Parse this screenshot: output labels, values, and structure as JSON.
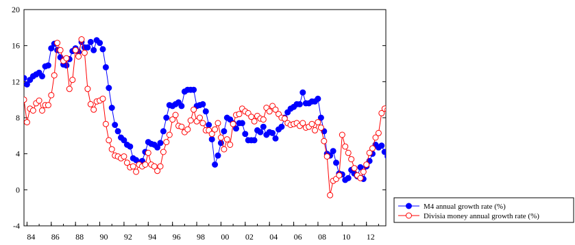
{
  "chart_data": {
    "type": "line",
    "title": "",
    "xlabel": "",
    "ylabel": "",
    "xlim": [
      1983.75,
      2013.6
    ],
    "ylim": [
      -4,
      20
    ],
    "y_ticks": [
      "-4",
      "0",
      "4",
      "8",
      "12",
      "16",
      "20"
    ],
    "y_tick_values": [
      -4,
      0,
      4,
      8,
      12,
      16,
      20
    ],
    "x_ticks": [
      "84",
      "86",
      "88",
      "90",
      "92",
      "94",
      "96",
      "98",
      "00",
      "02",
      "04",
      "06",
      "08",
      "10",
      "12"
    ],
    "x_tick_values": [
      1984,
      1986,
      1988,
      1990,
      1992,
      1994,
      1996,
      1998,
      2000,
      2002,
      2004,
      2006,
      2008,
      2010,
      2012
    ],
    "grid": false,
    "legend_position": "bottom-right, outside plot",
    "series": [
      {
        "name": "M4 annual growth rate (%)",
        "color": "#0000ff",
        "marker": "filled-circle",
        "points": [
          [
            1983.75,
            12.4
          ],
          [
            1984.0,
            11.7
          ],
          [
            1984.25,
            12.2
          ],
          [
            1984.5,
            12.6
          ],
          [
            1984.75,
            12.8
          ],
          [
            1985.0,
            13.0
          ],
          [
            1985.25,
            12.6
          ],
          [
            1985.5,
            13.7
          ],
          [
            1985.75,
            13.8
          ],
          [
            1986.0,
            15.7
          ],
          [
            1986.25,
            16.2
          ],
          [
            1986.5,
            15.5
          ],
          [
            1986.75,
            14.7
          ],
          [
            1987.0,
            13.9
          ],
          [
            1987.25,
            13.8
          ],
          [
            1987.5,
            14.5
          ],
          [
            1987.75,
            15.4
          ],
          [
            1988.0,
            15.7
          ],
          [
            1988.25,
            15.3
          ],
          [
            1988.5,
            16.4
          ],
          [
            1988.75,
            15.8
          ],
          [
            1989.0,
            15.8
          ],
          [
            1989.25,
            16.4
          ],
          [
            1989.5,
            15.5
          ],
          [
            1989.75,
            16.6
          ],
          [
            1990.0,
            16.3
          ],
          [
            1990.25,
            15.6
          ],
          [
            1990.5,
            13.6
          ],
          [
            1990.75,
            11.3
          ],
          [
            1991.0,
            9.1
          ],
          [
            1991.25,
            7.2
          ],
          [
            1991.5,
            6.5
          ],
          [
            1991.75,
            5.8
          ],
          [
            1992.0,
            5.5
          ],
          [
            1992.25,
            5.0
          ],
          [
            1992.5,
            4.8
          ],
          [
            1992.75,
            3.5
          ],
          [
            1993.0,
            3.3
          ],
          [
            1993.25,
            3.0
          ],
          [
            1993.5,
            3.2
          ],
          [
            1993.75,
            4.2
          ],
          [
            1994.0,
            5.3
          ],
          [
            1994.25,
            5.1
          ],
          [
            1994.5,
            5.0
          ],
          [
            1994.75,
            4.7
          ],
          [
            1995.0,
            5.2
          ],
          [
            1995.25,
            6.5
          ],
          [
            1995.5,
            8.0
          ],
          [
            1995.75,
            9.4
          ],
          [
            1996.0,
            9.3
          ],
          [
            1996.25,
            9.5
          ],
          [
            1996.5,
            9.7
          ],
          [
            1996.75,
            9.3
          ],
          [
            1997.0,
            10.9
          ],
          [
            1997.25,
            11.1
          ],
          [
            1997.5,
            11.1
          ],
          [
            1997.75,
            11.1
          ],
          [
            1998.0,
            9.3
          ],
          [
            1998.25,
            9.4
          ],
          [
            1998.5,
            9.5
          ],
          [
            1998.75,
            8.7
          ],
          [
            1999.0,
            7.2
          ],
          [
            1999.25,
            5.6
          ],
          [
            1999.5,
            2.8
          ],
          [
            1999.75,
            3.8
          ],
          [
            2000.0,
            5.2
          ],
          [
            2000.25,
            6.5
          ],
          [
            2000.5,
            8.0
          ],
          [
            2000.75,
            7.8
          ],
          [
            2001.0,
            7.4
          ],
          [
            2001.25,
            6.8
          ],
          [
            2001.5,
            7.4
          ],
          [
            2001.75,
            7.4
          ],
          [
            2002.0,
            6.2
          ],
          [
            2002.25,
            5.5
          ],
          [
            2002.5,
            5.5
          ],
          [
            2002.75,
            5.5
          ],
          [
            2003.0,
            6.6
          ],
          [
            2003.25,
            6.4
          ],
          [
            2003.5,
            7.0
          ],
          [
            2003.75,
            6.1
          ],
          [
            2004.0,
            6.4
          ],
          [
            2004.25,
            6.3
          ],
          [
            2004.5,
            5.7
          ],
          [
            2004.75,
            6.7
          ],
          [
            2005.0,
            7.0
          ],
          [
            2005.25,
            8.0
          ],
          [
            2005.5,
            8.6
          ],
          [
            2005.75,
            9.0
          ],
          [
            2006.0,
            9.2
          ],
          [
            2006.25,
            9.5
          ],
          [
            2006.5,
            9.5
          ],
          [
            2006.75,
            10.8
          ],
          [
            2007.0,
            9.6
          ],
          [
            2007.25,
            9.6
          ],
          [
            2007.5,
            9.8
          ],
          [
            2007.75,
            9.8
          ],
          [
            2008.0,
            10.1
          ],
          [
            2008.25,
            8.0
          ],
          [
            2008.5,
            6.5
          ],
          [
            2008.75,
            4.0
          ],
          [
            2009.0,
            3.8
          ],
          [
            2009.25,
            4.3
          ],
          [
            2009.5,
            3.0
          ],
          [
            2009.75,
            1.8
          ],
          [
            2010.0,
            1.7
          ],
          [
            2010.25,
            1.1
          ],
          [
            2010.5,
            1.3
          ],
          [
            2010.75,
            2.2
          ],
          [
            2011.0,
            1.8
          ],
          [
            2011.25,
            1.5
          ],
          [
            2011.5,
            2.5
          ],
          [
            2011.75,
            1.2
          ],
          [
            2012.0,
            2.6
          ],
          [
            2012.25,
            3.2
          ],
          [
            2012.5,
            4.0
          ],
          [
            2012.75,
            5.0
          ],
          [
            2013.0,
            4.7
          ],
          [
            2013.25,
            4.9
          ],
          [
            2013.5,
            4.2
          ],
          [
            2013.75,
            3.7
          ],
          [
            2014.0,
            3.8
          ]
        ]
      },
      {
        "name": "Divisia money annual growth rate (%)",
        "color": "#ff0000",
        "marker": "open-circle",
        "points": [
          [
            1983.75,
            10.0
          ],
          [
            1984.0,
            7.5
          ],
          [
            1984.25,
            9.0
          ],
          [
            1984.5,
            8.8
          ],
          [
            1984.75,
            9.6
          ],
          [
            1985.0,
            9.9
          ],
          [
            1985.25,
            8.8
          ],
          [
            1985.5,
            9.4
          ],
          [
            1985.75,
            9.4
          ],
          [
            1986.0,
            10.5
          ],
          [
            1986.25,
            12.7
          ],
          [
            1986.5,
            16.3
          ],
          [
            1986.75,
            15.5
          ],
          [
            1987.0,
            14.3
          ],
          [
            1987.25,
            14.6
          ],
          [
            1987.5,
            11.2
          ],
          [
            1987.75,
            12.2
          ],
          [
            1988.0,
            15.5
          ],
          [
            1988.25,
            14.8
          ],
          [
            1988.5,
            16.7
          ],
          [
            1988.75,
            15.2
          ],
          [
            1989.0,
            11.2
          ],
          [
            1989.25,
            9.5
          ],
          [
            1989.5,
            8.9
          ],
          [
            1989.75,
            9.8
          ],
          [
            1990.0,
            9.9
          ],
          [
            1990.25,
            10.1
          ],
          [
            1990.5,
            7.3
          ],
          [
            1990.75,
            5.5
          ],
          [
            1991.0,
            4.5
          ],
          [
            1991.25,
            3.8
          ],
          [
            1991.5,
            3.7
          ],
          [
            1991.75,
            3.5
          ],
          [
            1992.0,
            3.7
          ],
          [
            1992.25,
            3.0
          ],
          [
            1992.5,
            2.5
          ],
          [
            1992.75,
            2.6
          ],
          [
            1993.0,
            2.0
          ],
          [
            1993.25,
            2.8
          ],
          [
            1993.5,
            2.6
          ],
          [
            1993.75,
            2.8
          ],
          [
            1994.0,
            4.1
          ],
          [
            1994.25,
            2.8
          ],
          [
            1994.5,
            2.6
          ],
          [
            1994.75,
            2.1
          ],
          [
            1995.0,
            2.6
          ],
          [
            1995.25,
            4.2
          ],
          [
            1995.5,
            5.3
          ],
          [
            1995.75,
            6.1
          ],
          [
            1996.0,
            7.8
          ],
          [
            1996.25,
            8.3
          ],
          [
            1996.5,
            7.1
          ],
          [
            1996.75,
            7.0
          ],
          [
            1997.0,
            6.4
          ],
          [
            1997.25,
            6.7
          ],
          [
            1997.5,
            7.7
          ],
          [
            1997.75,
            8.9
          ],
          [
            1998.0,
            7.6
          ],
          [
            1998.25,
            8.0
          ],
          [
            1998.5,
            7.4
          ],
          [
            1998.75,
            6.6
          ],
          [
            1999.0,
            6.6
          ],
          [
            1999.25,
            6.2
          ],
          [
            1999.5,
            6.7
          ],
          [
            1999.75,
            7.4
          ],
          [
            2000.0,
            5.8
          ],
          [
            2000.25,
            4.5
          ],
          [
            2000.5,
            5.6
          ],
          [
            2000.75,
            5.0
          ],
          [
            2001.0,
            7.3
          ],
          [
            2001.25,
            8.3
          ],
          [
            2001.5,
            8.4
          ],
          [
            2001.75,
            9.0
          ],
          [
            2002.0,
            8.7
          ],
          [
            2002.25,
            8.5
          ],
          [
            2002.5,
            8.1
          ],
          [
            2002.75,
            7.6
          ],
          [
            2003.0,
            8.2
          ],
          [
            2003.25,
            7.9
          ],
          [
            2003.5,
            7.8
          ],
          [
            2003.75,
            9.1
          ],
          [
            2004.0,
            8.7
          ],
          [
            2004.25,
            9.3
          ],
          [
            2004.5,
            8.9
          ],
          [
            2004.75,
            8.4
          ],
          [
            2005.0,
            8.0
          ],
          [
            2005.25,
            7.9
          ],
          [
            2005.5,
            7.4
          ],
          [
            2005.75,
            7.2
          ],
          [
            2006.0,
            7.3
          ],
          [
            2006.25,
            7.4
          ],
          [
            2006.5,
            7.1
          ],
          [
            2006.75,
            7.4
          ],
          [
            2007.0,
            6.9
          ],
          [
            2007.25,
            7.0
          ],
          [
            2007.5,
            7.3
          ],
          [
            2007.75,
            6.6
          ],
          [
            2008.0,
            7.5
          ],
          [
            2008.25,
            6.9
          ],
          [
            2008.5,
            5.4
          ],
          [
            2008.75,
            3.7
          ],
          [
            2009.0,
            -0.6
          ],
          [
            2009.25,
            1.0
          ],
          [
            2009.5,
            1.2
          ],
          [
            2009.75,
            1.6
          ],
          [
            2010.0,
            6.1
          ],
          [
            2010.25,
            4.8
          ],
          [
            2010.5,
            4.1
          ],
          [
            2010.75,
            3.4
          ],
          [
            2011.0,
            2.4
          ],
          [
            2011.25,
            1.6
          ],
          [
            2011.5,
            1.3
          ],
          [
            2011.75,
            2.0
          ],
          [
            2012.0,
            2.8
          ],
          [
            2012.25,
            4.1
          ],
          [
            2012.5,
            4.6
          ],
          [
            2012.75,
            5.8
          ],
          [
            2013.0,
            6.3
          ],
          [
            2013.25,
            8.5
          ],
          [
            2013.5,
            9.0
          ],
          [
            2013.75,
            8.9
          ],
          [
            2014.0,
            9.6
          ]
        ]
      }
    ]
  }
}
